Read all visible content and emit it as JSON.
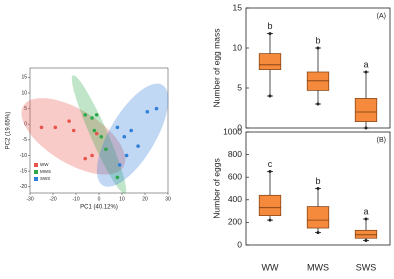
{
  "chart_data": [
    {
      "type": "scatter",
      "xlabel": "PC1 (40.12%)",
      "ylabel": "PC2 (19.65%)",
      "xlim": [
        -30,
        30
      ],
      "xticks": [
        -30,
        -20,
        -10,
        0,
        10,
        20,
        30
      ],
      "ylim": [
        -22,
        18
      ],
      "yticks": [
        -20,
        -15,
        -10,
        -5,
        0,
        5,
        10,
        15
      ],
      "legend": "lower left",
      "series": [
        {
          "name": "WW",
          "color": "#e8544a",
          "x": [
            -25,
            -19,
            -13,
            -11,
            -6,
            -3,
            -1
          ],
          "y": [
            -1,
            -1,
            1,
            -2,
            -11,
            -10,
            -3
          ]
        },
        {
          "name": "MWS",
          "color": "#2ea84a",
          "x": [
            -6,
            -3,
            -1,
            -2,
            3,
            8,
            1
          ],
          "y": [
            3,
            2,
            3,
            -2,
            -8,
            -17,
            -4
          ]
        },
        {
          "name": "SWS",
          "color": "#2f7fd9",
          "x": [
            8,
            11,
            14,
            12,
            21,
            25,
            17,
            9
          ],
          "y": [
            -1,
            -4,
            -2,
            -10,
            4,
            5,
            -7,
            -13
          ]
        }
      ]
    },
    {
      "type": "box",
      "label": "(A)",
      "ylabel": "Number of egg mass",
      "ylim": [
        0,
        15
      ],
      "yticks": [
        0,
        5,
        10,
        15
      ],
      "color": "#f58a3c",
      "boxes": [
        {
          "min": 4,
          "q1": 7.3,
          "median": 7.9,
          "q3": 9.3,
          "max": 11.8
        },
        {
          "min": 3,
          "q1": 4.7,
          "median": 5.9,
          "q3": 7,
          "max": 10
        },
        {
          "min": 0,
          "q1": 0.8,
          "median": 2,
          "q3": 3.7,
          "max": 7
        }
      ],
      "letters": [
        "b",
        "b",
        "a"
      ]
    },
    {
      "type": "box",
      "label": "(B)",
      "ylabel": "Number of eggs",
      "ylim": [
        0,
        1000
      ],
      "yticks": [
        0,
        200,
        400,
        600,
        800,
        1000
      ],
      "color": "#f58a3c",
      "categories": [
        "WW",
        "MWS",
        "SWS"
      ],
      "boxes": [
        {
          "min": 220,
          "q1": 260,
          "median": 330,
          "q3": 440,
          "max": 650
        },
        {
          "min": 110,
          "q1": 150,
          "median": 220,
          "q3": 340,
          "max": 500
        },
        {
          "min": 40,
          "q1": 60,
          "median": 90,
          "q3": 130,
          "max": 230
        }
      ],
      "letters": [
        "c",
        "b",
        "a"
      ]
    }
  ]
}
